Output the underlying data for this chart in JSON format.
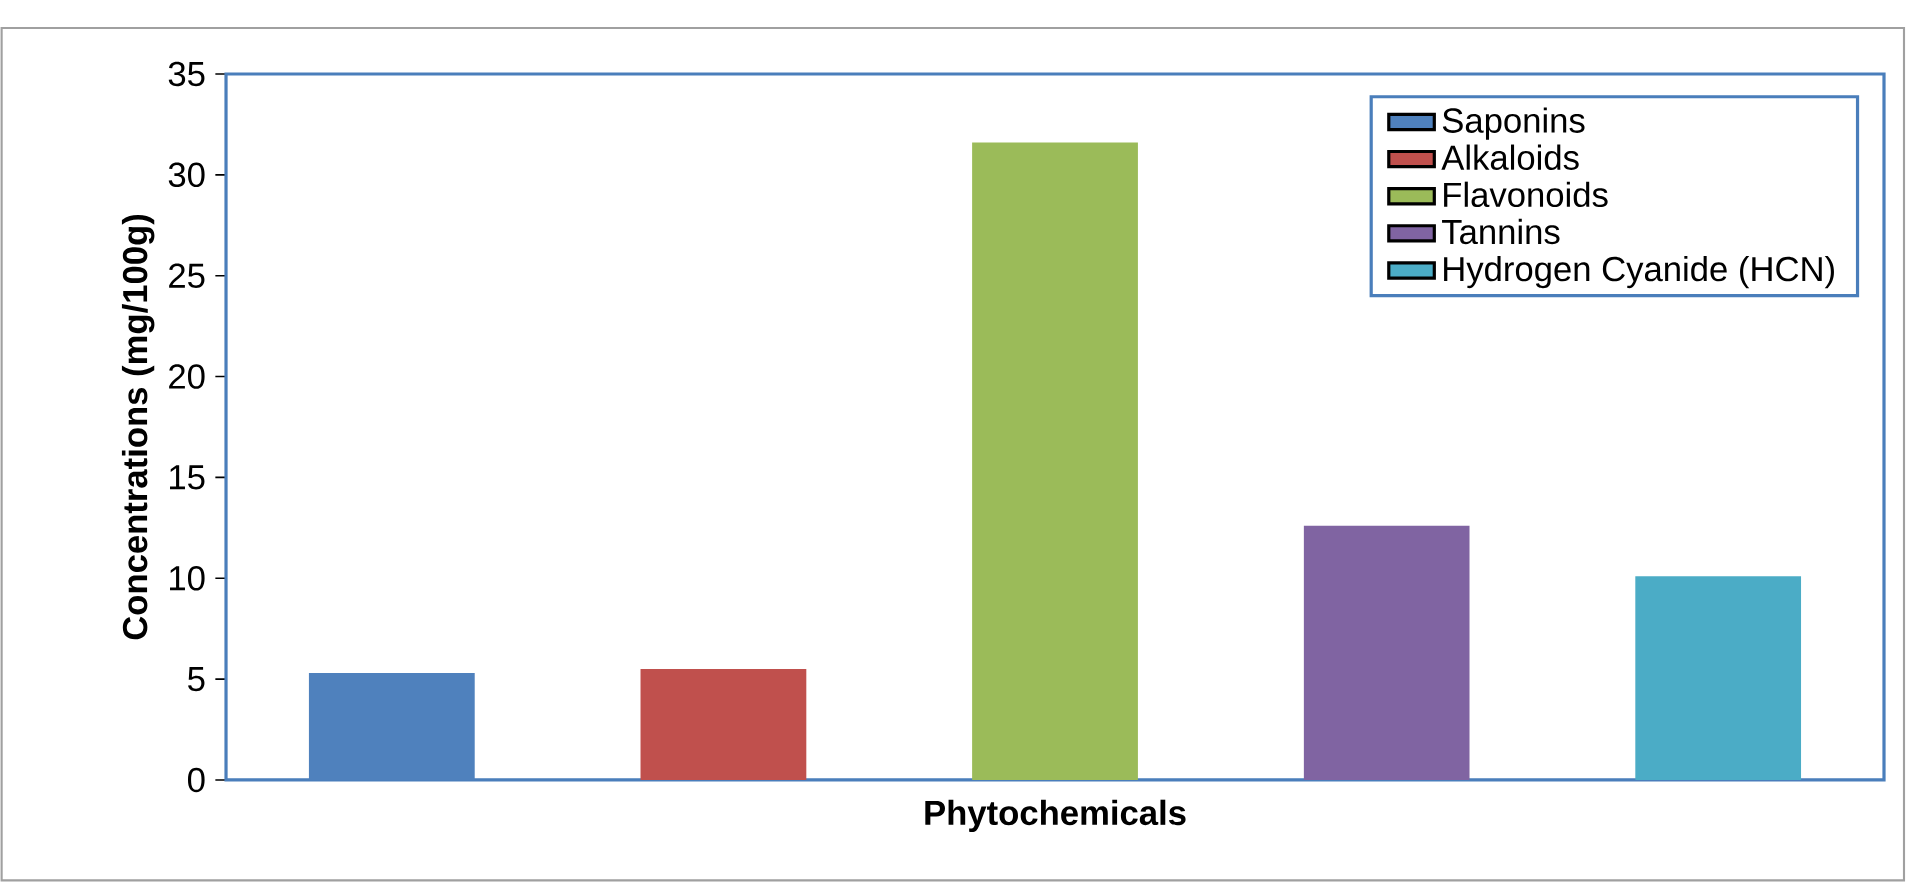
{
  "chart_data": {
    "type": "bar",
    "xlabel": "Phytochemicals",
    "ylabel": "Concentrations (mg/100g)",
    "categories": [
      null,
      null,
      null,
      null,
      null
    ],
    "series": [
      {
        "name": "Saponins",
        "color": "#4f81bd",
        "values": [
          5.3,
          null,
          null,
          null,
          null
        ]
      },
      {
        "name": "Alkaloids",
        "color": "#c0504d",
        "values": [
          null,
          5.5,
          null,
          null,
          null
        ]
      },
      {
        "name": "Flavonoids",
        "color": "#9bbb59",
        "values": [
          null,
          null,
          31.6,
          null,
          null
        ]
      },
      {
        "name": "Tannins",
        "color": "#8064a2",
        "values": [
          null,
          null,
          null,
          12.6,
          null
        ]
      },
      {
        "name": "Hydrogen Cyanide (HCN)",
        "color": "#4bacc6",
        "values": [
          null,
          null,
          null,
          null,
          10.1
        ]
      }
    ],
    "stacked": true,
    "ylim": [
      0,
      35
    ],
    "yticks": [
      0,
      5,
      10,
      15,
      20,
      25,
      30,
      35
    ],
    "grid": false,
    "legend": "top right",
    "tick_labels": "y"
  }
}
